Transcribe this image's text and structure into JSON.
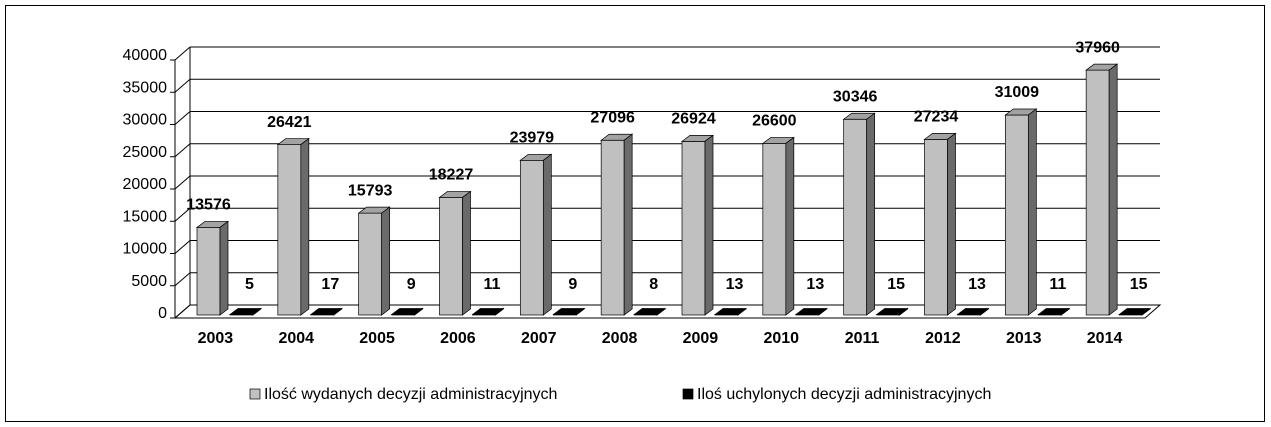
{
  "chart_data": {
    "type": "bar3d",
    "categories": [
      "2003",
      "2004",
      "2005",
      "2006",
      "2007",
      "2008",
      "2009",
      "2010",
      "2011",
      "2012",
      "2013",
      "2014"
    ],
    "series": [
      {
        "name": "Ilość wydanych decyzji administracyjnych",
        "color": "#c0c0c0",
        "values": [
          13576,
          26421,
          15793,
          18227,
          23979,
          27096,
          26924,
          26600,
          30346,
          27234,
          31009,
          37960
        ]
      },
      {
        "name": "Iloś uchylonych decyzji administracyjnych",
        "color": "#000000",
        "values": [
          5,
          17,
          9,
          11,
          9,
          8,
          13,
          13,
          15,
          13,
          11,
          15
        ]
      }
    ],
    "ylim": [
      0,
      40000
    ],
    "yticks": [
      0,
      5000,
      10000,
      15000,
      20000,
      25000,
      30000,
      35000,
      40000
    ],
    "grid": true
  }
}
